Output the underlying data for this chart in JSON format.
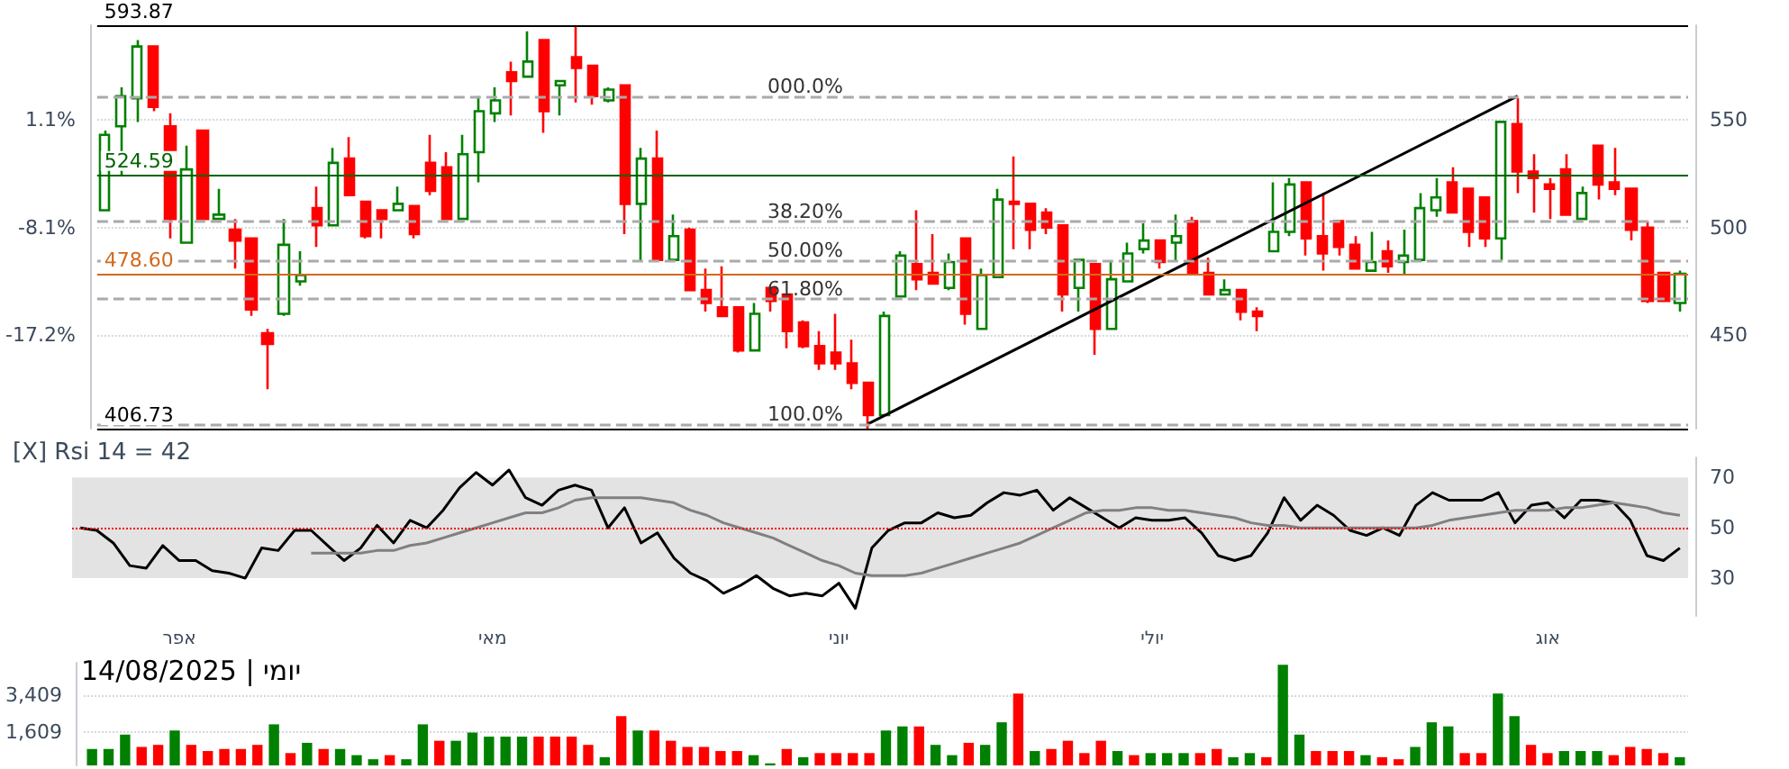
{
  "chart_data": [
    {
      "type": "candlestick",
      "categories": [
        null,
        null,
        null,
        null,
        null,
        null,
        null,
        null,
        null,
        null,
        null,
        null,
        null,
        null,
        null,
        null,
        null,
        null,
        null,
        null,
        null,
        null,
        null,
        null,
        null,
        null,
        null,
        null,
        null,
        null,
        null,
        null,
        null,
        null,
        null,
        null,
        null,
        null,
        null,
        null,
        null,
        null,
        null,
        null,
        null,
        null,
        null,
        null,
        null,
        null,
        null,
        null,
        null,
        null,
        null,
        null,
        null,
        null,
        null,
        null,
        null,
        null,
        null,
        null,
        null,
        null,
        null,
        null,
        null,
        null,
        null,
        null,
        null,
        null,
        null,
        null,
        null,
        null,
        null,
        null,
        null,
        null,
        null,
        null,
        null,
        null,
        null,
        null,
        null,
        null,
        null,
        null,
        null,
        null,
        null,
        null,
        null,
        null
      ],
      "ohlc": [
        [
          508,
          545,
          508,
          543
        ],
        [
          547,
          565,
          524,
          561
        ],
        [
          560,
          587,
          549,
          584
        ],
        [
          584,
          584,
          554,
          556
        ],
        [
          547,
          553,
          495,
          504
        ],
        [
          493,
          538,
          493,
          527
        ],
        [
          545,
          545,
          504,
          504
        ],
        [
          504,
          518,
          504,
          506
        ],
        [
          499,
          504,
          481,
          494
        ],
        [
          495,
          495,
          459,
          462
        ],
        [
          451,
          453,
          425,
          446
        ],
        [
          460,
          504,
          459,
          492
        ],
        [
          475,
          489,
          473,
          478
        ],
        [
          509,
          519,
          491,
          501
        ],
        [
          501,
          537,
          501,
          530
        ],
        [
          532,
          542,
          515,
          515
        ],
        [
          512,
          512,
          495,
          496
        ],
        [
          508,
          508,
          495,
          504
        ],
        [
          508,
          519,
          508,
          511
        ],
        [
          510,
          510,
          495,
          497
        ],
        [
          530,
          543,
          515,
          517
        ],
        [
          528,
          535,
          504,
          504
        ],
        [
          504,
          543,
          504,
          534
        ],
        [
          535,
          561,
          521,
          554
        ],
        [
          553,
          565,
          549,
          559
        ],
        [
          572,
          577,
          552,
          568
        ],
        [
          570,
          591,
          570,
          577
        ],
        [
          587,
          587,
          544,
          554
        ],
        [
          566,
          568,
          552,
          568
        ],
        [
          579,
          593.87,
          558,
          574
        ],
        [
          575,
          575,
          557,
          561
        ],
        [
          559,
          565,
          558,
          564
        ],
        [
          566,
          566,
          497,
          511
        ],
        [
          511,
          537,
          484,
          532
        ],
        [
          532,
          545,
          484,
          485
        ],
        [
          485,
          506,
          485,
          496
        ],
        [
          499,
          500,
          471,
          471
        ],
        [
          471,
          481,
          461,
          465
        ],
        [
          463,
          482,
          459,
          459
        ],
        [
          463,
          463,
          442,
          443
        ],
        [
          443,
          465,
          443,
          460
        ],
        [
          472,
          472,
          461,
          466
        ],
        [
          469,
          469,
          444,
          452
        ],
        [
          456,
          457,
          444,
          445
        ],
        [
          445,
          452,
          434,
          437
        ],
        [
          442,
          460,
          434,
          437
        ],
        [
          437,
          448,
          425,
          428
        ],
        [
          428,
          428,
          406.73,
          413
        ],
        [
          413,
          461,
          413,
          459
        ],
        [
          468,
          489,
          468,
          487
        ],
        [
          483,
          508,
          471,
          476
        ],
        [
          479,
          497,
          474,
          474
        ],
        [
          472,
          488,
          471,
          484
        ],
        [
          495,
          495,
          455,
          460
        ],
        [
          453,
          481,
          453,
          478
        ],
        [
          477,
          518,
          477,
          513
        ],
        [
          512,
          533,
          490,
          511
        ],
        [
          511,
          511,
          490,
          499
        ],
        [
          507,
          509,
          497,
          500
        ],
        [
          501,
          501,
          461,
          469
        ],
        [
          472,
          485,
          461,
          485
        ],
        [
          483,
          483,
          441,
          453
        ],
        [
          453,
          484,
          453,
          476
        ],
        [
          475,
          493,
          475,
          488
        ],
        [
          490,
          502,
          488,
          494
        ],
        [
          494,
          494,
          481,
          484
        ],
        [
          493,
          506,
          484,
          496
        ],
        [
          503,
          505,
          479,
          479
        ],
        [
          479,
          486,
          469,
          469
        ],
        [
          469,
          476,
          469,
          471
        ],
        [
          471,
          471,
          457,
          461
        ],
        [
          461,
          463,
          452,
          459
        ],
        [
          489,
          521,
          489,
          498
        ],
        [
          498,
          523,
          496,
          520
        ],
        [
          521,
          521,
          487,
          495
        ],
        [
          496,
          516,
          480,
          488
        ],
        [
          503,
          503,
          487,
          491
        ],
        [
          492,
          496,
          481,
          481
        ],
        [
          480,
          498,
          480,
          484
        ],
        [
          489,
          494,
          479,
          482
        ],
        [
          484,
          499,
          478,
          487
        ],
        [
          485,
          516,
          484,
          509
        ],
        [
          508,
          523,
          505,
          514
        ],
        [
          521,
          528,
          507,
          507
        ],
        [
          518,
          518,
          491,
          498
        ],
        [
          514,
          514,
          491,
          495
        ],
        [
          495,
          549,
          485,
          549
        ],
        [
          548,
          560,
          516,
          526
        ],
        [
          526,
          534,
          507,
          523
        ],
        [
          520,
          523,
          504,
          518
        ],
        [
          527,
          534,
          506,
          506
        ],
        [
          504,
          519,
          504,
          516
        ],
        [
          538,
          538,
          513,
          520
        ],
        [
          521,
          537,
          515,
          518
        ],
        [
          518,
          518,
          494,
          499
        ],
        [
          500,
          503,
          465,
          466
        ],
        [
          479,
          479,
          466,
          466
        ],
        [
          465,
          480,
          461,
          478.6
        ]
      ],
      "colors": [
        "#008000",
        "#008000",
        "#008000",
        "#ff0000",
        "#ff0000",
        "#008000",
        "#ff0000",
        "#008000",
        "#ff0000",
        "#ff0000",
        "#ff0000",
        "#008000",
        "#008000",
        "#ff0000",
        "#008000",
        "#ff0000",
        "#ff0000",
        "#ff0000",
        "#008000",
        "#ff0000",
        "#ff0000",
        "#ff0000",
        "#008000",
        "#008000",
        "#008000",
        "#ff0000",
        "#008000",
        "#ff0000",
        "#008000",
        "#ff0000",
        "#ff0000",
        "#008000",
        "#ff0000",
        "#008000",
        "#ff0000",
        "#008000",
        "#ff0000",
        "#ff0000",
        "#ff0000",
        "#ff0000",
        "#008000",
        "#ff0000",
        "#ff0000",
        "#ff0000",
        "#ff0000",
        "#ff0000",
        "#ff0000",
        "#ff0000",
        "#008000",
        "#008000",
        "#ff0000",
        "#ff0000",
        "#008000",
        "#ff0000",
        "#008000",
        "#008000",
        "#ff0000",
        "#ff0000",
        "#ff0000",
        "#ff0000",
        "#008000",
        "#ff0000",
        "#008000",
        "#008000",
        "#008000",
        "#ff0000",
        "#008000",
        "#ff0000",
        "#ff0000",
        "#008000",
        "#ff0000",
        "#ff0000",
        "#008000",
        "#008000",
        "#ff0000",
        "#ff0000",
        "#ff0000",
        "#ff0000",
        "#008000",
        "#ff0000",
        "#008000",
        "#008000",
        "#008000",
        "#ff0000",
        "#ff0000",
        "#ff0000",
        "#008000",
        "#ff0000",
        "#ff0000",
        "#ff0000",
        "#ff0000",
        "#008000",
        "#ff0000",
        "#ff0000",
        "#ff0000",
        "#ff0000",
        "#ff0000",
        "#008000"
      ],
      "series": [
        {
          "type": "line",
          "color": "#000000",
          "values": [
            null,
            null,
            null,
            null,
            null,
            null,
            null,
            null,
            null,
            null,
            null,
            null,
            null,
            null,
            null,
            null,
            null,
            null,
            null,
            null,
            null,
            null,
            null,
            null,
            null,
            null,
            null,
            null,
            null,
            null,
            null,
            null,
            null,
            null,
            null,
            null,
            null,
            null,
            null,
            null,
            null,
            null,
            null,
            null,
            null,
            null,
            null,
            409,
            null,
            null,
            null,
            null,
            null,
            null,
            null,
            null,
            null,
            null,
            null,
            null,
            null,
            null,
            null,
            null,
            null,
            null,
            null,
            null,
            null,
            null,
            null,
            null,
            null,
            null,
            null,
            null,
            null,
            null,
            null,
            null,
            null,
            null,
            null,
            null,
            null,
            null,
            null,
            561,
            null,
            null,
            null,
            null,
            null,
            null,
            null,
            null,
            null,
            null
          ]
        }
      ],
      "marker": "none",
      "ylim": [
        406.73,
        593.87
      ],
      "yticks": [
        450,
        500,
        550
      ],
      "y2lim": [
        -25.2,
        9.2
      ],
      "y2ticks": [
        {
          "value": 1.1,
          "label": "1.1%"
        },
        {
          "value": -8.1,
          "label": "-8.1%"
        },
        {
          "value": -17.2,
          "label": "-17.2%"
        }
      ],
      "grid": "y",
      "tick_labels": "y",
      "ref_lines": [
        {
          "axis": "y",
          "value": 593.87,
          "label": "593.87",
          "color": "#000000"
        },
        {
          "axis": "y",
          "value": 406.73,
          "label": "406.73",
          "color": "#000000"
        },
        {
          "axis": "y",
          "value": 524.59,
          "label": "524.59",
          "color": "#006400"
        },
        {
          "axis": "y",
          "value": 478.6,
          "label": "478.60",
          "color": "#d2691e"
        },
        {
          "axis": "y",
          "value": 561,
          "color": "#aaaaaa",
          "line_style": "dashed"
        },
        {
          "axis": "y",
          "value": 503,
          "color": "#aaaaaa",
          "line_style": "dashed"
        },
        {
          "axis": "y",
          "value": 485,
          "color": "#aaaaaa",
          "line_style": "dashed"
        },
        {
          "axis": "y",
          "value": 467,
          "color": "#aaaaaa",
          "line_style": "dashed"
        },
        {
          "axis": "y",
          "value": 409,
          "color": "#aaaaaa",
          "line_style": "dashed"
        }
      ],
      "annotations": [
        {
          "text": "000.0%",
          "y": 561
        },
        {
          "text": "38.20%",
          "y": 503
        },
        {
          "text": "50.00%",
          "y": 485
        },
        {
          "text": "61.80%",
          "y": 467
        },
        {
          "text": "100.0%",
          "y": 409
        }
      ]
    },
    {
      "type": "line",
      "title": "[X] Rsi 14 = 42",
      "categories": [
        null,
        null,
        null,
        null,
        null,
        null,
        "אפר",
        null,
        null,
        null,
        null,
        null,
        null,
        null,
        null,
        null,
        null,
        null,
        null,
        null,
        null,
        null,
        null,
        null,
        null,
        "מאי",
        null,
        null,
        null,
        null,
        null,
        null,
        null,
        null,
        null,
        null,
        null,
        null,
        null,
        null,
        null,
        null,
        null,
        null,
        null,
        null,
        "יוני",
        null,
        null,
        null,
        null,
        null,
        null,
        null,
        null,
        null,
        null,
        null,
        null,
        null,
        null,
        null,
        null,
        null,
        null,
        "יולי",
        null,
        null,
        null,
        null,
        null,
        null,
        null,
        null,
        null,
        null,
        null,
        null,
        null,
        null,
        null,
        null,
        null,
        null,
        null,
        null,
        null,
        null,
        null,
        "אוג",
        null,
        null,
        null,
        null,
        null,
        null,
        null,
        null
      ],
      "series": [
        {
          "color": "#000000",
          "values": [
            50,
            49,
            44,
            35,
            34,
            43,
            37,
            37,
            33,
            32,
            30,
            42,
            41,
            49,
            49,
            43,
            37,
            42,
            51,
            44,
            53,
            50,
            57,
            66,
            72,
            67,
            73,
            62,
            59,
            65,
            67,
            65,
            50,
            58,
            44,
            48,
            38,
            32,
            29,
            24,
            27,
            31,
            26,
            23,
            24,
            23,
            28,
            18,
            42,
            49,
            52,
            52,
            56,
            54,
            55,
            60,
            64,
            63,
            65,
            57,
            62,
            58,
            54,
            50,
            54,
            53,
            53,
            54,
            48,
            39,
            37,
            39,
            48,
            62,
            53,
            59,
            55,
            49,
            47,
            50,
            47,
            59,
            64,
            61,
            61,
            61,
            64,
            52,
            59,
            60,
            54,
            61,
            61,
            60,
            53,
            39,
            37,
            42
          ]
        },
        {
          "color": "#808080",
          "values": [
            null,
            null,
            null,
            null,
            null,
            null,
            null,
            null,
            null,
            null,
            null,
            null,
            null,
            null,
            40,
            40,
            40,
            40,
            41,
            41,
            43,
            44,
            46,
            48,
            50,
            52,
            54,
            56,
            56,
            58,
            61,
            62,
            62,
            62,
            62,
            61,
            60,
            57,
            55,
            52,
            50,
            48,
            46,
            43,
            40,
            37,
            35,
            32,
            31,
            31,
            31,
            32,
            34,
            36,
            38,
            40,
            42,
            44,
            47,
            50,
            53,
            56,
            57,
            57,
            58,
            58,
            57,
            57,
            56,
            55,
            54,
            52,
            51,
            51,
            50,
            50,
            50,
            50,
            50,
            50,
            50,
            50,
            51,
            53,
            54,
            55,
            56,
            57,
            57,
            57,
            58,
            58,
            59,
            60,
            59,
            58,
            56,
            55
          ]
        }
      ],
      "marker": "none",
      "ylim": [
        15,
        78
      ],
      "yticks": [
        30,
        50,
        70
      ],
      "ref_lines": [
        {
          "axis": "y",
          "value": 50,
          "color": "#ff0000",
          "line_style": "dotted"
        }
      ],
      "bands": [
        {
          "axis": "y",
          "from": 30,
          "to": 70,
          "color": "#e3e3e3"
        }
      ]
    },
    {
      "type": "bar",
      "title": "יומי | 14/08/2025",
      "categories": [
        null,
        null,
        null,
        null,
        null,
        null,
        null,
        null,
        null,
        null,
        null,
        null,
        null,
        null,
        null,
        null,
        null,
        null,
        null,
        null,
        null,
        null,
        null,
        null,
        null,
        null,
        null,
        null,
        null,
        null,
        null,
        null,
        null,
        null,
        null,
        null,
        null,
        null,
        null,
        null,
        null,
        null,
        null,
        null,
        null,
        null,
        null,
        null,
        null,
        null,
        null,
        null,
        null,
        null,
        null,
        null,
        null,
        null,
        null,
        null,
        null,
        null,
        null,
        null,
        null,
        null,
        null,
        null,
        null,
        null,
        null,
        null,
        null,
        null,
        null,
        null,
        null,
        null,
        null,
        null,
        null,
        null,
        null,
        null,
        null,
        null,
        null,
        null,
        null,
        null,
        null,
        null,
        null,
        null,
        null,
        null,
        null
      ],
      "values": [
        800,
        800,
        1500,
        900,
        1000,
        1700,
        1000,
        700,
        800,
        800,
        1000,
        2000,
        600,
        1100,
        800,
        800,
        500,
        300,
        500,
        300,
        2000,
        1200,
        1200,
        1600,
        1400,
        1400,
        1400,
        1400,
        1400,
        1400,
        1000,
        400,
        2400,
        1700,
        1700,
        1200,
        900,
        900,
        700,
        700,
        500,
        100,
        800,
        400,
        600,
        600,
        600,
        600,
        1700,
        1900,
        1900,
        1000,
        500,
        1100,
        1000,
        2100,
        3500,
        700,
        800,
        1200,
        600,
        1200,
        700,
        500,
        600,
        600,
        600,
        600,
        800,
        400,
        600,
        400,
        4900,
        1500,
        700,
        700,
        700,
        500,
        400,
        300,
        900,
        2100,
        1900,
        600,
        600,
        3500,
        2400,
        1000,
        600,
        700,
        700,
        700,
        500,
        900,
        800,
        600,
        400
      ],
      "colors": [
        "#008000",
        "#008000",
        "#008000",
        "#ff0000",
        "#ff0000",
        "#008000",
        "#ff0000",
        "#ff0000",
        "#ff0000",
        "#ff0000",
        "#ff0000",
        "#008000",
        "#ff0000",
        "#008000",
        "#ff0000",
        "#008000",
        "#008000",
        "#008000",
        "#ff0000",
        "#008000",
        "#008000",
        "#ff0000",
        "#008000",
        "#008000",
        "#008000",
        "#008000",
        "#008000",
        "#ff0000",
        "#ff0000",
        "#ff0000",
        "#ff0000",
        "#008000",
        "#ff0000",
        "#008000",
        "#ff0000",
        "#ff0000",
        "#ff0000",
        "#ff0000",
        "#ff0000",
        "#ff0000",
        "#008000",
        "#008000",
        "#ff0000",
        "#008000",
        "#ff0000",
        "#ff0000",
        "#ff0000",
        "#ff0000",
        "#008000",
        "#008000",
        "#ff0000",
        "#008000",
        "#008000",
        "#ff0000",
        "#008000",
        "#008000",
        "#ff0000",
        "#008000",
        "#ff0000",
        "#ff0000",
        "#ff0000",
        "#ff0000",
        "#008000",
        "#ff0000",
        "#008000",
        "#008000",
        "#008000",
        "#ff0000",
        "#ff0000",
        "#008000",
        "#008000",
        "#ff0000",
        "#008000",
        "#008000",
        "#ff0000",
        "#ff0000",
        "#ff0000",
        "#008000",
        "#ff0000",
        "#ff0000",
        "#008000",
        "#008000",
        "#008000",
        "#ff0000",
        "#ff0000",
        "#008000",
        "#008000",
        "#ff0000",
        "#ff0000",
        "#008000",
        "#008000",
        "#008000",
        "#ff0000",
        "#ff0000",
        "#ff0000",
        "#ff0000",
        "#008000"
      ],
      "ylim": [
        0,
        5000
      ],
      "yticks": [
        {
          "value": 1609,
          "label": "1,609"
        },
        {
          "value": 3409,
          "label": "3,409"
        }
      ],
      "grid": "y",
      "tick_labels": "y"
    }
  ]
}
